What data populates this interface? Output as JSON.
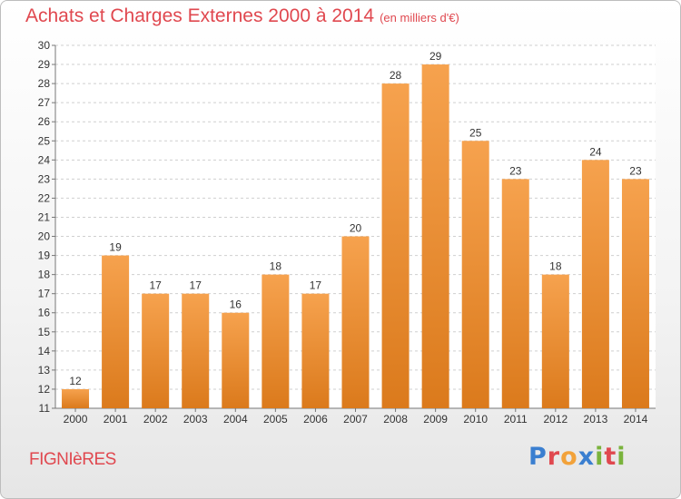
{
  "header": {
    "title": "Achats et Charges Externes 2000 à 2014",
    "unit": "(en milliers d'€)"
  },
  "footer": {
    "commune": "FIGNIèRES",
    "brand": "Proxiti",
    "brand_colors": [
      "#3a7fd0",
      "#e0484f",
      "#f2a23a",
      "#3a7fd0",
      "#7ab33c",
      "#e0484f",
      "#7ab33c"
    ]
  },
  "colors": {
    "bar_top": "#f6a24e",
    "bar_bottom": "#db7a1c",
    "title": "#e0484f"
  },
  "chart_data": {
    "type": "bar",
    "title": "Achats et Charges Externes 2000 à 2014",
    "ylabel": "",
    "xlabel": "",
    "categories": [
      "2000",
      "2001",
      "2002",
      "2003",
      "2004",
      "2005",
      "2006",
      "2007",
      "2008",
      "2009",
      "2010",
      "2011",
      "2012",
      "2013",
      "2014"
    ],
    "values": [
      12,
      19,
      17,
      17,
      16,
      18,
      17,
      20,
      28,
      29,
      25,
      23,
      18,
      24,
      23
    ],
    "ylim": [
      11,
      30
    ],
    "yticks": [
      11,
      12,
      13,
      14,
      15,
      16,
      17,
      18,
      19,
      20,
      21,
      22,
      23,
      24,
      25,
      26,
      27,
      28,
      29,
      30
    ],
    "grid": "horizontal dashed"
  }
}
